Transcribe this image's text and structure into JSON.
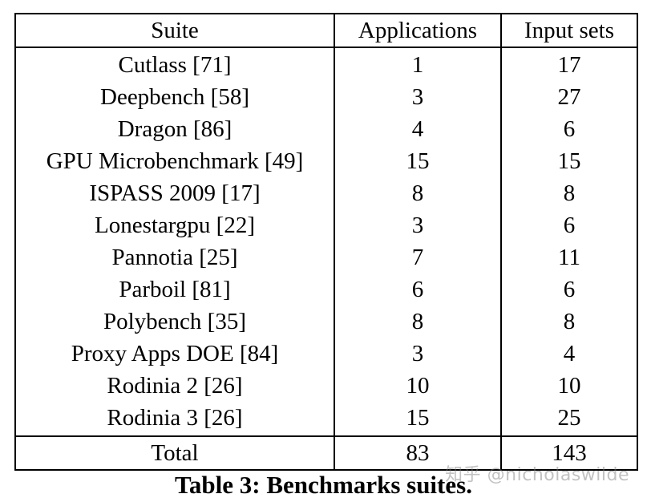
{
  "table": {
    "headers": [
      "Suite",
      "Applications",
      "Input sets"
    ],
    "rows": [
      {
        "suite": "Cutlass [71]",
        "applications": "1",
        "input_sets": "17"
      },
      {
        "suite": "Deepbench [58]",
        "applications": "3",
        "input_sets": "27"
      },
      {
        "suite": "Dragon [86]",
        "applications": "4",
        "input_sets": "6"
      },
      {
        "suite": "GPU Microbenchmark [49]",
        "applications": "15",
        "input_sets": "15"
      },
      {
        "suite": "ISPASS 2009 [17]",
        "applications": "8",
        "input_sets": "8"
      },
      {
        "suite": "Lonestargpu [22]",
        "applications": "3",
        "input_sets": "6"
      },
      {
        "suite": "Pannotia [25]",
        "applications": "7",
        "input_sets": "11"
      },
      {
        "suite": "Parboil [81]",
        "applications": "6",
        "input_sets": "6"
      },
      {
        "suite": "Polybench [35]",
        "applications": "8",
        "input_sets": "8"
      },
      {
        "suite": "Proxy Apps DOE [84]",
        "applications": "3",
        "input_sets": "4"
      },
      {
        "suite": "Rodinia 2 [26]",
        "applications": "10",
        "input_sets": "10"
      },
      {
        "suite": "Rodinia 3 [26]",
        "applications": "15",
        "input_sets": "25"
      }
    ],
    "total": {
      "suite": "Total",
      "applications": "83",
      "input_sets": "143"
    }
  },
  "caption": "Table 3: Benchmarks suites.",
  "watermark": "知乎 @nicholaswilde"
}
